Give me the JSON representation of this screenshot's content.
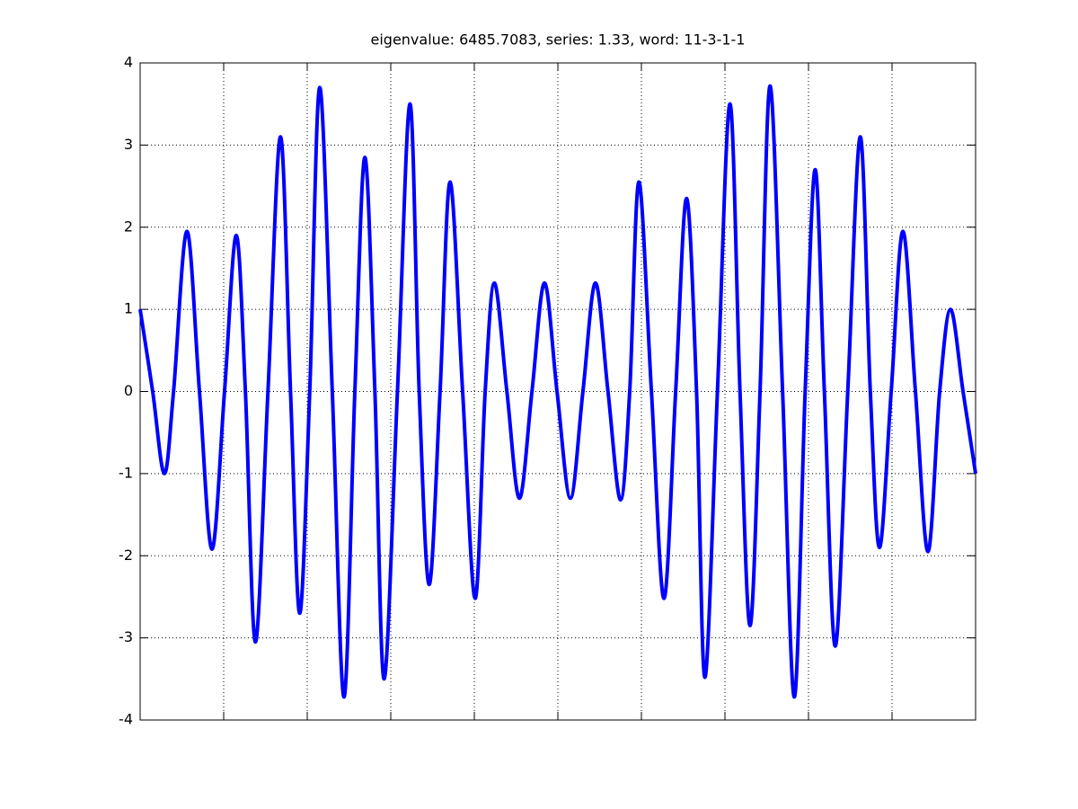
{
  "chart_data": {
    "type": "line",
    "title": "eigenvalue: 6485.7083, series: 1.33, word: 11-3-1-1",
    "x": [
      0,
      0.15,
      0.29,
      0.4,
      0.56,
      0.71,
      0.86,
      1.01,
      1.15,
      1.26,
      1.38,
      1.53,
      1.68,
      1.8,
      1.91,
      2.03,
      2.15,
      2.3,
      2.44,
      2.57,
      2.69,
      2.81,
      2.92,
      3.08,
      3.23,
      3.34,
      3.46,
      3.59,
      3.71,
      3.86,
      4.01,
      4.13,
      4.24,
      4.39,
      4.54,
      4.69,
      4.84,
      4.99,
      5.15,
      5.3,
      5.45,
      5.6,
      5.75,
      5.86,
      5.97,
      6.12,
      6.27,
      6.41,
      6.54,
      6.66,
      6.76,
      6.91,
      7.06,
      7.18,
      7.3,
      7.42,
      7.54,
      7.69,
      7.83,
      7.96,
      8.08,
      8.19,
      8.32,
      8.47,
      8.62,
      8.74,
      8.85,
      8.99,
      9.13,
      9.28,
      9.43,
      9.57,
      9.7,
      9.85,
      10.0
    ],
    "series": [
      {
        "color": "#0000ff",
        "values": [
          1,
          0,
          -1,
          0,
          1.95,
          0,
          -1.92,
          0,
          1.9,
          0,
          -3.05,
          0,
          3.1,
          0,
          -2.7,
          0,
          3.7,
          0,
          -3.72,
          0,
          2.85,
          0,
          -3.5,
          0,
          3.5,
          0,
          -2.35,
          0,
          2.55,
          0,
          -2.52,
          0,
          1.32,
          0,
          -1.3,
          0,
          1.32,
          0,
          -1.3,
          0,
          1.32,
          0,
          -1.32,
          0,
          2.55,
          0,
          -2.52,
          0,
          2.35,
          0,
          -3.48,
          0,
          3.5,
          0,
          -2.85,
          0,
          3.72,
          0,
          -3.72,
          0,
          2.7,
          0,
          -3.1,
          0,
          3.1,
          0,
          -1.9,
          0,
          1.95,
          0,
          -1.95,
          0,
          1,
          0,
          -1
        ]
      }
    ],
    "xlim": [
      0,
      10
    ],
    "xticks": [
      1,
      2,
      3,
      4,
      5,
      6,
      7,
      8,
      9
    ],
    "ylim": [
      -4,
      4
    ],
    "yticks": [
      -4,
      -3,
      -2,
      -1,
      0,
      1,
      2,
      3,
      4
    ],
    "grid": true
  }
}
